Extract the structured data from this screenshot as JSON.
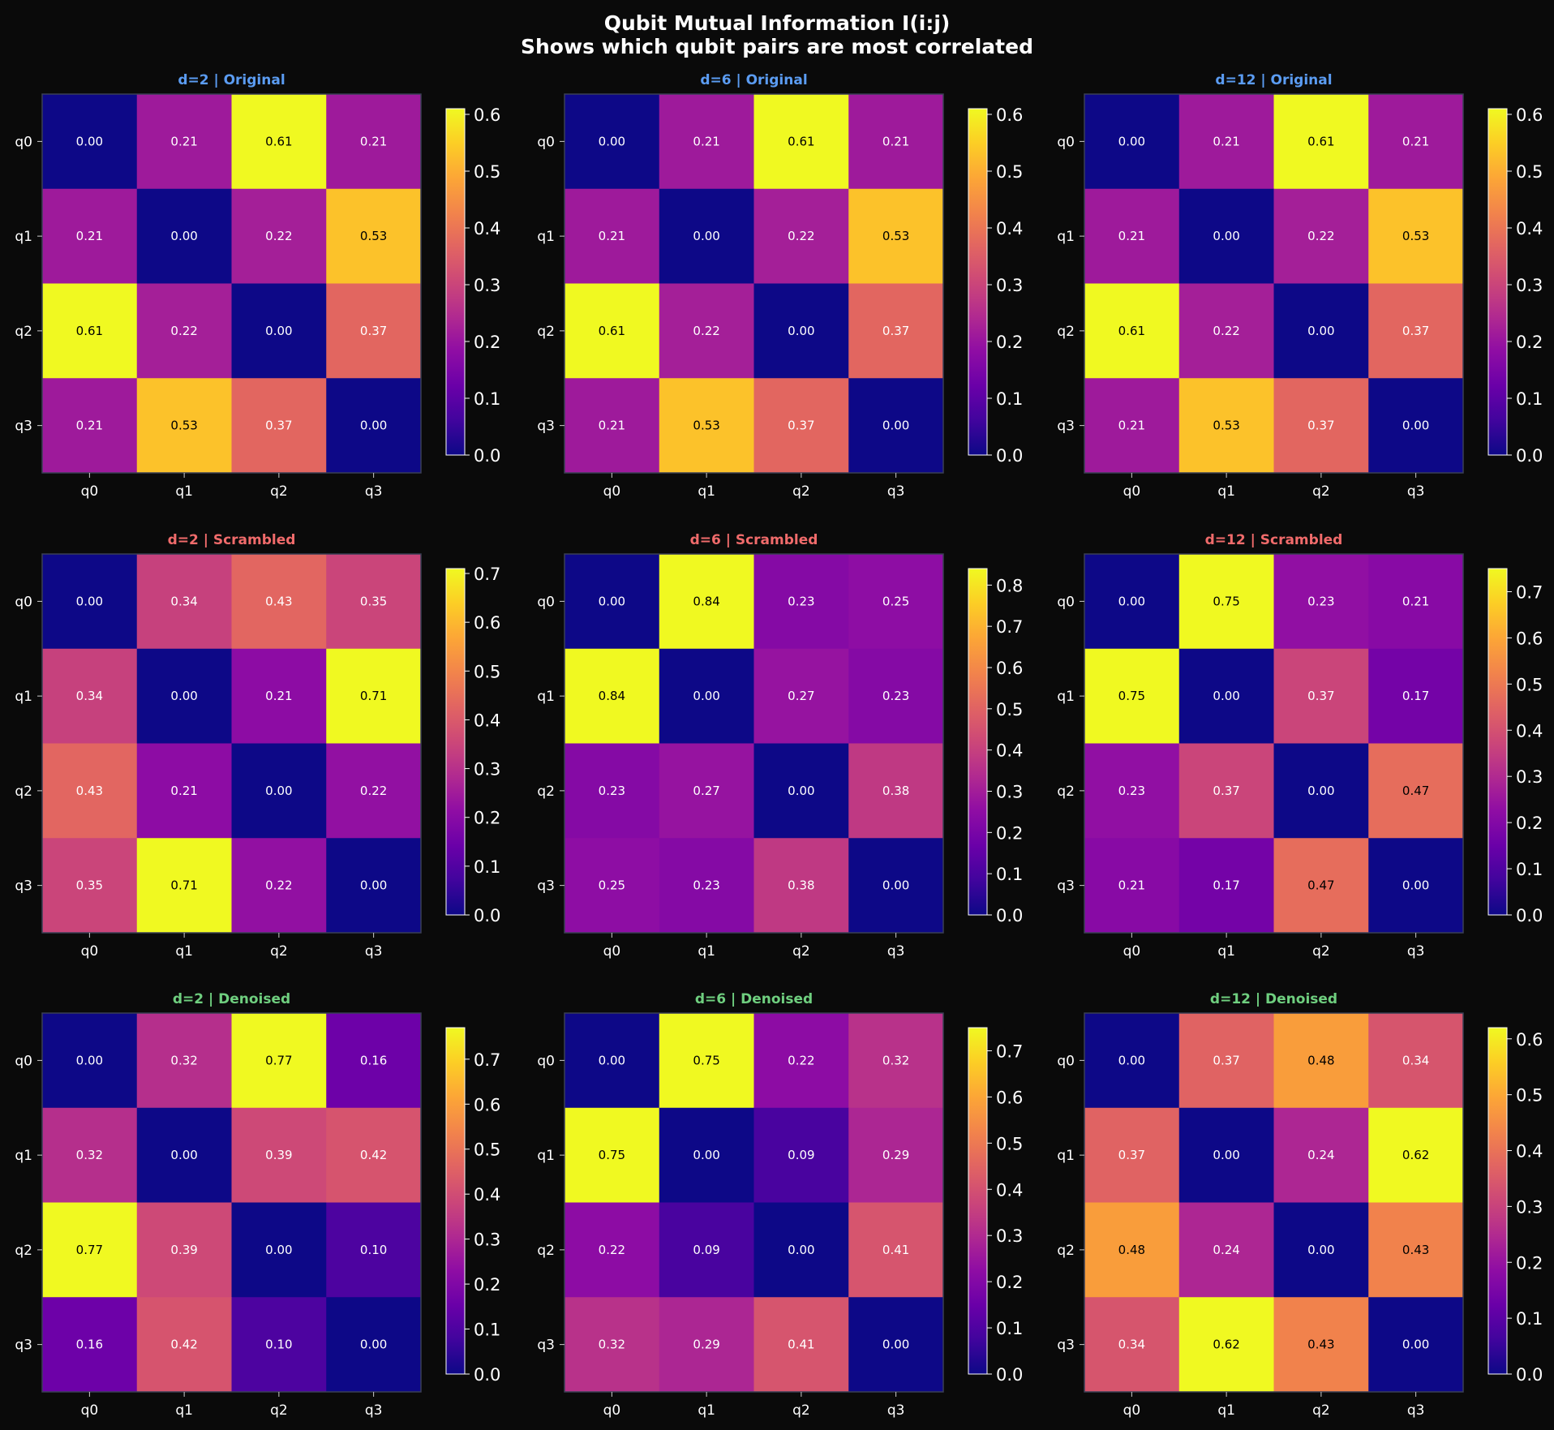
{
  "figure": {
    "title_line1": "Qubit Mutual Information I(i:j)",
    "title_line2": "Shows which qubit pairs are most correlated",
    "background": "#0a0a0a"
  },
  "colors": {
    "original": "#5b9cf2",
    "scrambled": "#f06b6b",
    "denoised": "#6fcf7f",
    "colormap": "plasma"
  },
  "chart_data": [
    {
      "type": "heatmap",
      "title": "d=2 | Original",
      "variant": "original",
      "x_labels": [
        "q0",
        "q1",
        "q2",
        "q3"
      ],
      "y_labels": [
        "q0",
        "q1",
        "q2",
        "q3"
      ],
      "values": [
        [
          0.0,
          0.21,
          0.61,
          0.21
        ],
        [
          0.21,
          0.0,
          0.22,
          0.53
        ],
        [
          0.61,
          0.22,
          0.0,
          0.37
        ],
        [
          0.21,
          0.53,
          0.37,
          0.0
        ]
      ],
      "colorbar_range": [
        0,
        0.61
      ],
      "colorbar_ticks": [
        0.0,
        0.1,
        0.2,
        0.3,
        0.4,
        0.5,
        0.6
      ]
    },
    {
      "type": "heatmap",
      "title": "d=6 | Original",
      "variant": "original",
      "x_labels": [
        "q0",
        "q1",
        "q2",
        "q3"
      ],
      "y_labels": [
        "q0",
        "q1",
        "q2",
        "q3"
      ],
      "values": [
        [
          0.0,
          0.21,
          0.61,
          0.21
        ],
        [
          0.21,
          0.0,
          0.22,
          0.53
        ],
        [
          0.61,
          0.22,
          0.0,
          0.37
        ],
        [
          0.21,
          0.53,
          0.37,
          0.0
        ]
      ],
      "colorbar_range": [
        0,
        0.61
      ],
      "colorbar_ticks": [
        0.0,
        0.1,
        0.2,
        0.3,
        0.4,
        0.5,
        0.6
      ]
    },
    {
      "type": "heatmap",
      "title": "d=12 | Original",
      "variant": "original",
      "x_labels": [
        "q0",
        "q1",
        "q2",
        "q3"
      ],
      "y_labels": [
        "q0",
        "q1",
        "q2",
        "q3"
      ],
      "values": [
        [
          0.0,
          0.21,
          0.61,
          0.21
        ],
        [
          0.21,
          0.0,
          0.22,
          0.53
        ],
        [
          0.61,
          0.22,
          0.0,
          0.37
        ],
        [
          0.21,
          0.53,
          0.37,
          0.0
        ]
      ],
      "colorbar_range": [
        0,
        0.61
      ],
      "colorbar_ticks": [
        0.0,
        0.1,
        0.2,
        0.3,
        0.4,
        0.5,
        0.6
      ]
    },
    {
      "type": "heatmap",
      "title": "d=2 | Scrambled",
      "variant": "scrambled",
      "x_labels": [
        "q0",
        "q1",
        "q2",
        "q3"
      ],
      "y_labels": [
        "q0",
        "q1",
        "q2",
        "q3"
      ],
      "values": [
        [
          0.0,
          0.34,
          0.43,
          0.35
        ],
        [
          0.34,
          0.0,
          0.21,
          0.71
        ],
        [
          0.43,
          0.21,
          0.0,
          0.22
        ],
        [
          0.35,
          0.71,
          0.22,
          0.0
        ]
      ],
      "colorbar_range": [
        0,
        0.71
      ],
      "colorbar_ticks": [
        0.0,
        0.1,
        0.2,
        0.3,
        0.4,
        0.5,
        0.6,
        0.7
      ]
    },
    {
      "type": "heatmap",
      "title": "d=6 | Scrambled",
      "variant": "scrambled",
      "x_labels": [
        "q0",
        "q1",
        "q2",
        "q3"
      ],
      "y_labels": [
        "q0",
        "q1",
        "q2",
        "q3"
      ],
      "values": [
        [
          0.0,
          0.84,
          0.23,
          0.25
        ],
        [
          0.84,
          0.0,
          0.27,
          0.23
        ],
        [
          0.23,
          0.27,
          0.0,
          0.38
        ],
        [
          0.25,
          0.23,
          0.38,
          0.0
        ]
      ],
      "colorbar_range": [
        0,
        0.84
      ],
      "colorbar_ticks": [
        0.0,
        0.1,
        0.2,
        0.3,
        0.4,
        0.5,
        0.6,
        0.7,
        0.8
      ]
    },
    {
      "type": "heatmap",
      "title": "d=12 | Scrambled",
      "variant": "scrambled",
      "x_labels": [
        "q0",
        "q1",
        "q2",
        "q3"
      ],
      "y_labels": [
        "q0",
        "q1",
        "q2",
        "q3"
      ],
      "values": [
        [
          0.0,
          0.75,
          0.23,
          0.21
        ],
        [
          0.75,
          0.0,
          0.37,
          0.17
        ],
        [
          0.23,
          0.37,
          0.0,
          0.47
        ],
        [
          0.21,
          0.17,
          0.47,
          0.0
        ]
      ],
      "colorbar_range": [
        0,
        0.75
      ],
      "colorbar_ticks": [
        0.0,
        0.1,
        0.2,
        0.3,
        0.4,
        0.5,
        0.6,
        0.7
      ]
    },
    {
      "type": "heatmap",
      "title": "d=2 | Denoised",
      "variant": "denoised",
      "x_labels": [
        "q0",
        "q1",
        "q2",
        "q3"
      ],
      "y_labels": [
        "q0",
        "q1",
        "q2",
        "q3"
      ],
      "values": [
        [
          0.0,
          0.32,
          0.77,
          0.16
        ],
        [
          0.32,
          0.0,
          0.39,
          0.42
        ],
        [
          0.77,
          0.39,
          0.0,
          0.1
        ],
        [
          0.16,
          0.42,
          0.1,
          0.0
        ]
      ],
      "colorbar_range": [
        0,
        0.77
      ],
      "colorbar_ticks": [
        0.0,
        0.1,
        0.2,
        0.3,
        0.4,
        0.5,
        0.6,
        0.7
      ]
    },
    {
      "type": "heatmap",
      "title": "d=6 | Denoised",
      "variant": "denoised",
      "x_labels": [
        "q0",
        "q1",
        "q2",
        "q3"
      ],
      "y_labels": [
        "q0",
        "q1",
        "q2",
        "q3"
      ],
      "values": [
        [
          0.0,
          0.75,
          0.22,
          0.32
        ],
        [
          0.75,
          0.0,
          0.09,
          0.29
        ],
        [
          0.22,
          0.09,
          0.0,
          0.41
        ],
        [
          0.32,
          0.29,
          0.41,
          0.0
        ]
      ],
      "colorbar_range": [
        0,
        0.75
      ],
      "colorbar_ticks": [
        0.0,
        0.1,
        0.2,
        0.3,
        0.4,
        0.5,
        0.6,
        0.7
      ]
    },
    {
      "type": "heatmap",
      "title": "d=12 | Denoised",
      "variant": "denoised",
      "x_labels": [
        "q0",
        "q1",
        "q2",
        "q3"
      ],
      "y_labels": [
        "q0",
        "q1",
        "q2",
        "q3"
      ],
      "values": [
        [
          0.0,
          0.37,
          0.48,
          0.34
        ],
        [
          0.37,
          0.0,
          0.24,
          0.62
        ],
        [
          0.48,
          0.24,
          0.0,
          0.43
        ],
        [
          0.34,
          0.62,
          0.43,
          0.0
        ]
      ],
      "colorbar_range": [
        0,
        0.62
      ],
      "colorbar_ticks": [
        0.0,
        0.1,
        0.2,
        0.3,
        0.4,
        0.5,
        0.6
      ]
    }
  ]
}
